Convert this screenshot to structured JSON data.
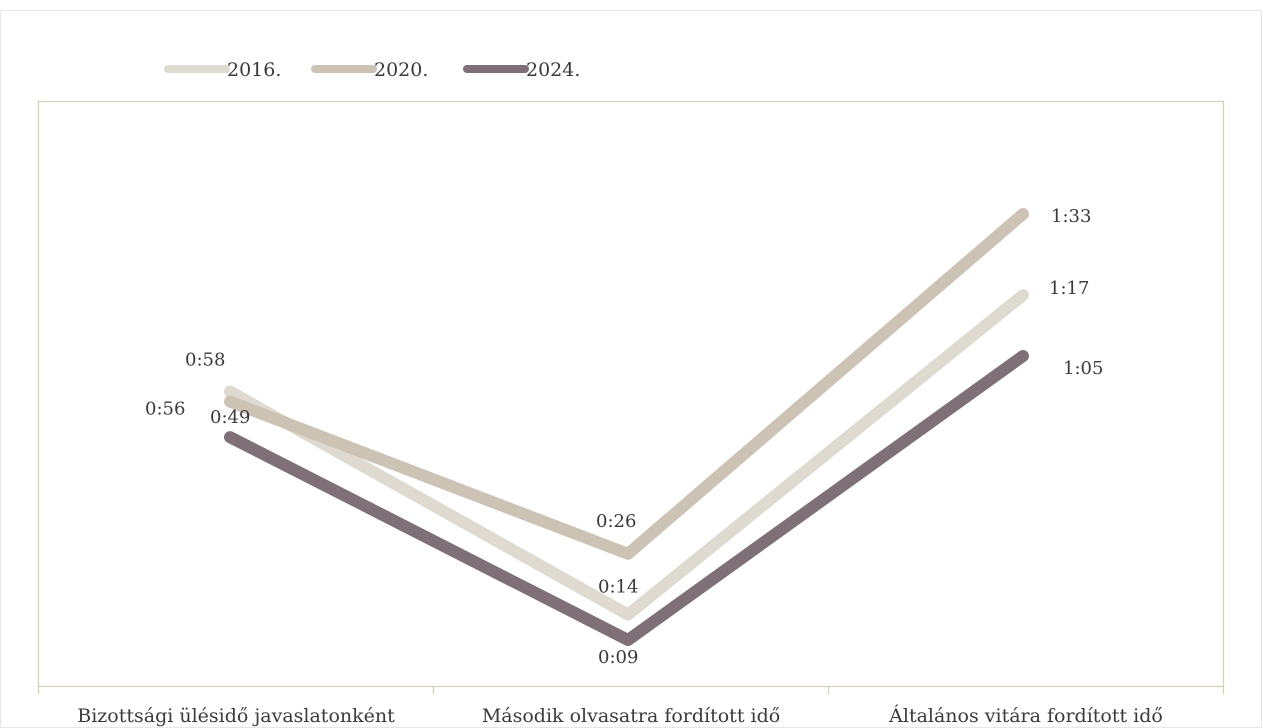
{
  "chart_data": {
    "type": "line",
    "categories": [
      "Bizottsági ülésidő javaslatonként",
      "Második olvasatra fordított idő",
      "Általános vitára fordított idő"
    ],
    "series": [
      {
        "name": "2016.",
        "color": "#dedad0",
        "values": [
          58,
          14,
          77
        ],
        "labels": [
          "0:58",
          "0:14",
          "1:17"
        ]
      },
      {
        "name": "2020.",
        "color": "#ccc3b4",
        "values": [
          56,
          26,
          93
        ],
        "labels": [
          "0:56",
          "0:26",
          "1:33"
        ]
      },
      {
        "name": "2024.",
        "color": "#7f6f77",
        "values": [
          49,
          9,
          65
        ],
        "labels": [
          "0:49",
          "0:09",
          "1:05"
        ]
      }
    ],
    "ylim": [
      0,
      110
    ],
    "grid": false,
    "legend_position": "top-left"
  }
}
